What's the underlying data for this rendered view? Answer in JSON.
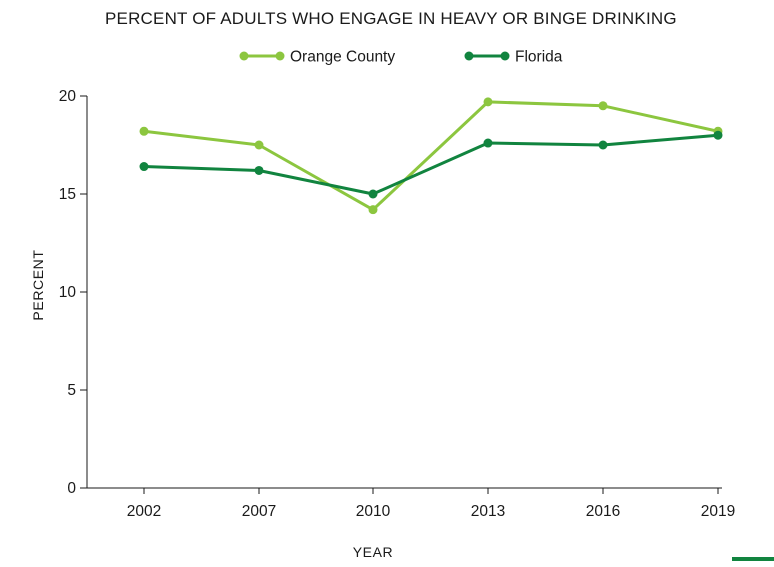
{
  "chart_data": {
    "type": "line",
    "title": "PERCENT OF ADULTS WHO ENGAGE IN HEAVY OR BINGE DRINKING",
    "xlabel": "YEAR",
    "ylabel": "PERCENT",
    "categories": [
      "2002",
      "2007",
      "2010",
      "2013",
      "2016",
      "2019"
    ],
    "yticks": [
      "0",
      "5",
      "10",
      "15",
      "20"
    ],
    "ylim": [
      0,
      20
    ],
    "grid": false,
    "legend_position": "top-center",
    "series": [
      {
        "name": "Orange County",
        "color": "#8cc63f",
        "values": [
          18.2,
          17.5,
          14.2,
          19.7,
          19.5,
          18.2
        ]
      },
      {
        "name": "Florida",
        "color": "#11843f",
        "values": [
          16.4,
          16.2,
          15.0,
          17.6,
          17.5,
          18.0
        ]
      }
    ]
  },
  "accent_color": "#11843f"
}
